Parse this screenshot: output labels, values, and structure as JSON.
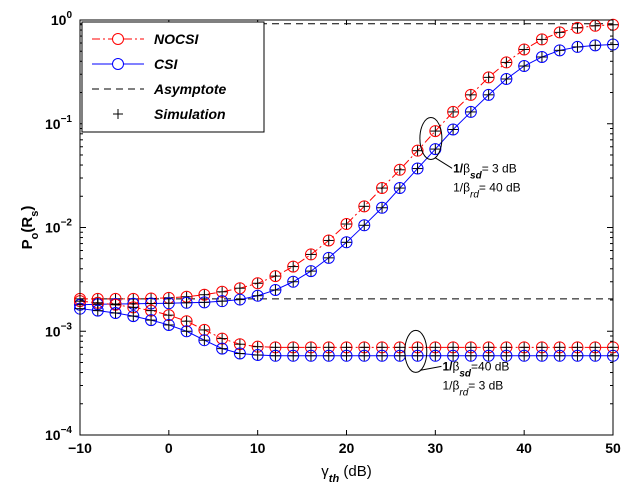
{
  "chart_data": {
    "type": "line",
    "title": "",
    "xlabel": {
      "main": "γ",
      "sub": "th",
      "unit": " (dB)"
    },
    "ylabel": {
      "main": "P",
      "sub": "o",
      "arg_open": "(R",
      "arg_sub": "s",
      "arg_close": ")"
    },
    "xlim": [
      -10,
      50
    ],
    "ylim": [
      0.0001,
      1
    ],
    "yscale": "log",
    "grid": false,
    "legend_position": "top-left",
    "xticks": [
      {
        "value": -10,
        "label": "−10"
      },
      {
        "value": 0,
        "label": "0"
      },
      {
        "value": 10,
        "label": "10"
      },
      {
        "value": 20,
        "label": "20"
      },
      {
        "value": 30,
        "label": "30"
      },
      {
        "value": 40,
        "label": "40"
      },
      {
        "value": 50,
        "label": "50"
      }
    ],
    "yticks": [
      {
        "value": 0.0001,
        "base": "10",
        "exp": "−4"
      },
      {
        "value": 0.001,
        "base": "10",
        "exp": "−3"
      },
      {
        "value": 0.01,
        "base": "10",
        "exp": "−2"
      },
      {
        "value": 0.1,
        "base": "10",
        "exp": "−1"
      },
      {
        "value": 1,
        "base": "10",
        "exp": "0"
      }
    ],
    "legend": [
      {
        "label": "NOCSI",
        "style": "red-dashdot-circle"
      },
      {
        "label": "CSI",
        "style": "blue-solid-circle"
      },
      {
        "label": "Asymptote",
        "style": "black-dashed"
      },
      {
        "label": "Simulation",
        "style": "plus"
      }
    ],
    "colors": {
      "nocsi": "#ff0000",
      "csi": "#0000ff",
      "asymptote": "#000000",
      "simulation": "#000000"
    },
    "x": [
      -10,
      -8,
      -6,
      -4,
      -2,
      0,
      2,
      4,
      6,
      8,
      10,
      12,
      14,
      16,
      18,
      20,
      22,
      24,
      26,
      28,
      30,
      32,
      34,
      36,
      38,
      40,
      42,
      44,
      46,
      48,
      50
    ],
    "series": [
      {
        "name": "NOCSI",
        "case": "upper",
        "values": [
          0.00205,
          0.00205,
          0.00205,
          0.00205,
          0.00207,
          0.0021,
          0.00215,
          0.00225,
          0.0024,
          0.0026,
          0.0029,
          0.0034,
          0.0042,
          0.0055,
          0.0075,
          0.0108,
          0.016,
          0.024,
          0.036,
          0.055,
          0.085,
          0.13,
          0.19,
          0.28,
          0.39,
          0.52,
          0.65,
          0.76,
          0.84,
          0.88,
          0.9
        ]
      },
      {
        "name": "CSI",
        "case": "upper",
        "values": [
          0.0018,
          0.00182,
          0.00183,
          0.00184,
          0.00185,
          0.00186,
          0.00188,
          0.0019,
          0.00195,
          0.00202,
          0.0022,
          0.0025,
          0.003,
          0.0038,
          0.0051,
          0.0072,
          0.0105,
          0.0155,
          0.024,
          0.037,
          0.057,
          0.088,
          0.13,
          0.19,
          0.27,
          0.36,
          0.44,
          0.51,
          0.55,
          0.57,
          0.58
        ]
      },
      {
        "name": "NOCSI",
        "case": "lower",
        "values": [
          0.00195,
          0.00188,
          0.0018,
          0.0017,
          0.00158,
          0.00143,
          0.00125,
          0.00103,
          0.00085,
          0.00075,
          0.00071,
          0.0007,
          0.0007,
          0.0007,
          0.0007,
          0.0007,
          0.0007,
          0.0007,
          0.0007,
          0.0007,
          0.0007,
          0.0007,
          0.0007,
          0.0007,
          0.0007,
          0.0007,
          0.0007,
          0.0007,
          0.0007,
          0.0007,
          0.0007
        ]
      },
      {
        "name": "CSI",
        "case": "lower",
        "values": [
          0.00165,
          0.00158,
          0.0015,
          0.0014,
          0.00128,
          0.00115,
          0.001,
          0.00082,
          0.00068,
          0.00061,
          0.00059,
          0.00058,
          0.00058,
          0.00058,
          0.00058,
          0.00058,
          0.00058,
          0.00058,
          0.00058,
          0.00058,
          0.00058,
          0.00058,
          0.00058,
          0.00058,
          0.00058,
          0.00058,
          0.00058,
          0.00058,
          0.00058,
          0.00058,
          0.00058
        ]
      }
    ],
    "asymptotes": [
      {
        "name": "Asymptote",
        "value": 0.92
      },
      {
        "name": "Asymptote",
        "value": 0.00205
      }
    ],
    "annotations": [
      {
        "lines": [
          [
            {
              "t": "1/",
              "bold": true
            },
            {
              "t": "β",
              "bold": false
            },
            {
              "t": "sd",
              "sub": true,
              "bold": true
            },
            {
              "t": "=  3 dB",
              "bold": false
            }
          ],
          [
            {
              "t": "1/",
              "bold": false
            },
            {
              "t": "β",
              "bold": false
            },
            {
              "t": "rd",
              "sub": true,
              "bold": false
            },
            {
              "t": "= 40 dB",
              "bold": false
            }
          ]
        ],
        "x": 32.0,
        "y": 0.034,
        "ellipse": {
          "cx": 29.5,
          "cy": 0.072
        }
      },
      {
        "lines": [
          [
            {
              "t": "1/",
              "bold": true
            },
            {
              "t": "β",
              "bold": false
            },
            {
              "t": "sd",
              "sub": true,
              "bold": true
            },
            {
              "t": "=40 dB",
              "bold": false
            }
          ],
          [
            {
              "t": "1/",
              "bold": false
            },
            {
              "t": "β",
              "bold": false
            },
            {
              "t": "rd",
              "sub": true,
              "bold": false
            },
            {
              "t": "=  3 dB",
              "bold": false
            }
          ]
        ],
        "x": 30.8,
        "y": 0.00042,
        "ellipse": {
          "cx": 27.8,
          "cy": 0.00064
        }
      }
    ]
  }
}
